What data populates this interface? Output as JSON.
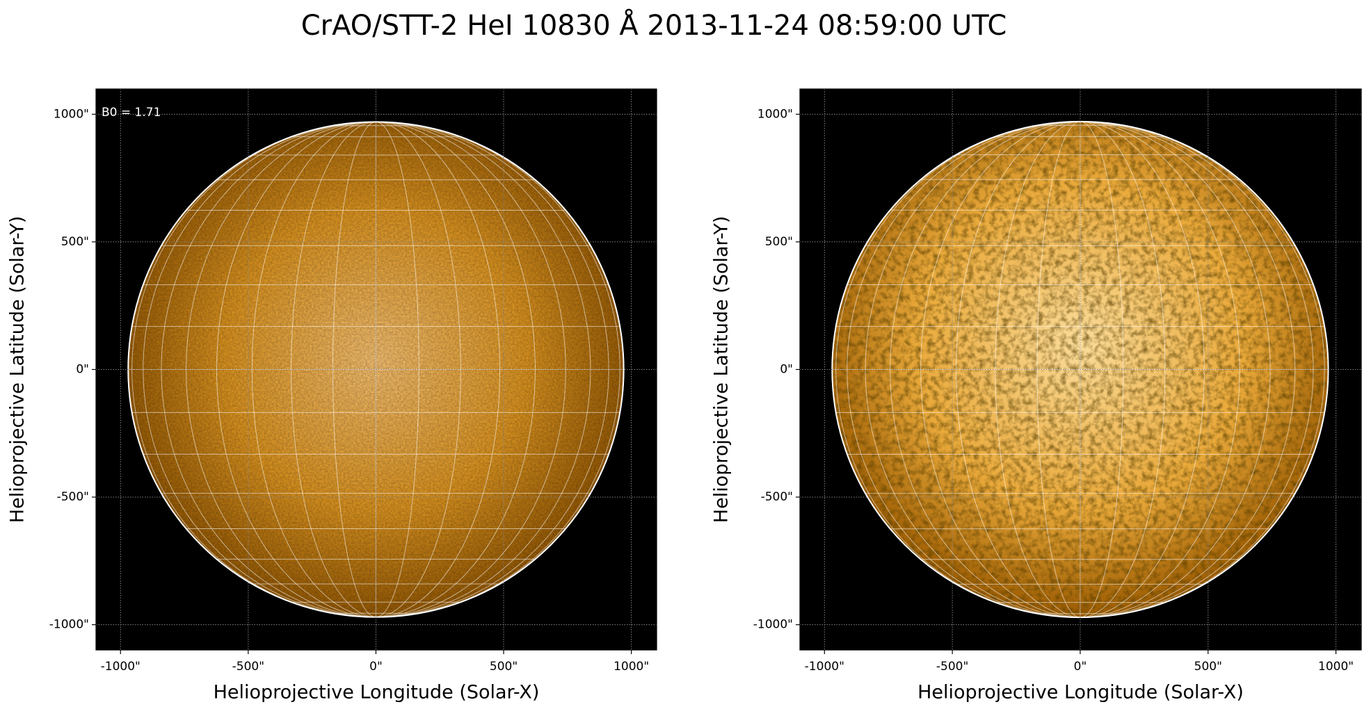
{
  "title": "CrAO/STT-2 HeI 10830 Å 2013-11-24 08:59:00 UTC",
  "chart_data": [
    {
      "type": "image",
      "xlabel": "Helioprojective Longitude (Solar-X)",
      "ylabel": "Helioprojective Latitude (Solar-Y)",
      "annotation": "B0 = 1.71",
      "xlim": [
        -1096,
        1099
      ],
      "ylim": [
        -1099,
        1099
      ],
      "xticks": [
        {
          "value": -1000,
          "label": "-1000\""
        },
        {
          "value": -500,
          "label": "-500\""
        },
        {
          "value": 0,
          "label": "0\""
        },
        {
          "value": 500,
          "label": "500\""
        },
        {
          "value": 1000,
          "label": "1000\""
        }
      ],
      "yticks": [
        {
          "value": -1000,
          "label": "-1000\""
        },
        {
          "value": -500,
          "label": "-500\""
        },
        {
          "value": 0,
          "label": "0\""
        },
        {
          "value": 500,
          "label": "500\""
        },
        {
          "value": 1000,
          "label": "1000\""
        }
      ],
      "grid": true,
      "disk_radius": 970,
      "heliographic_grid_step": 10,
      "texture": "smooth"
    },
    {
      "type": "image",
      "xlabel": "Helioprojective Longitude (Solar-X)",
      "ylabel": "Helioprojective Latitude (Solar-Y)",
      "xlim": [
        -1096,
        1099
      ],
      "ylim": [
        -1099,
        1099
      ],
      "xticks": [
        {
          "value": -1000,
          "label": "-1000\""
        },
        {
          "value": -500,
          "label": "-500\""
        },
        {
          "value": 0,
          "label": "0\""
        },
        {
          "value": 500,
          "label": "500\""
        },
        {
          "value": 1000,
          "label": "1000\""
        }
      ],
      "yticks": [
        {
          "value": -1000,
          "label": "-1000\""
        },
        {
          "value": -500,
          "label": "-500\""
        },
        {
          "value": 0,
          "label": "0\""
        },
        {
          "value": 500,
          "label": "500\""
        },
        {
          "value": 1000,
          "label": "1000\""
        }
      ],
      "grid": true,
      "disk_radius": 970,
      "heliographic_grid_step": 10,
      "texture": "contrast"
    }
  ]
}
